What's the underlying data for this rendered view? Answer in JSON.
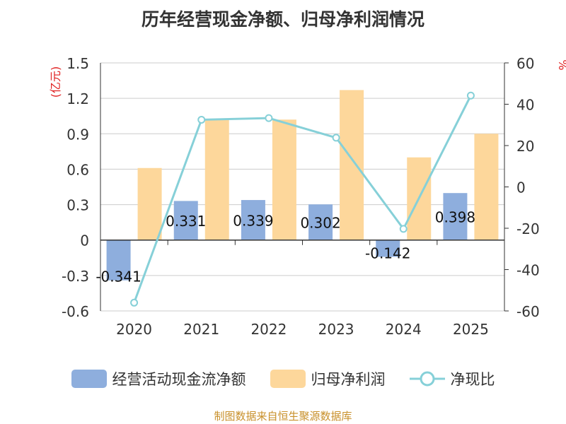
{
  "chart_data": {
    "type": "bar+line",
    "title": "历年经营现金净额、归母净利润情况",
    "categories": [
      "2020",
      "2021",
      "2022",
      "2023",
      "2024",
      "2025"
    ],
    "series": [
      {
        "name": "经营活动现金流净额",
        "type": "bar",
        "axis": "left",
        "color": "#8eaedd",
        "values": [
          -0.341,
          0.331,
          0.339,
          0.302,
          -0.142,
          0.398
        ],
        "labels": [
          "-0.341",
          "0.331",
          "0.339",
          "0.302",
          "-0.142",
          "0.398"
        ]
      },
      {
        "name": "归母净利润",
        "type": "bar",
        "axis": "left",
        "color": "#fdd79b",
        "values": [
          0.61,
          1.02,
          1.02,
          1.27,
          0.7,
          0.9
        ]
      },
      {
        "name": "净现比",
        "type": "line",
        "axis": "right",
        "color": "#86d0d8",
        "values": [
          -56,
          32.5,
          33.3,
          23.8,
          -20.3,
          44.2
        ]
      }
    ],
    "y_left": {
      "label": "(亿元)",
      "min": -0.6,
      "max": 1.5,
      "ticks": [
        1.5,
        1.2,
        0.9,
        0.6,
        0.3,
        0,
        -0.3,
        -0.6
      ],
      "tick_labels": [
        "1.5",
        "1.2",
        "0.9",
        "0.6",
        "0.3",
        "0",
        "-0.3",
        "-0.6"
      ]
    },
    "y_right": {
      "label": "%",
      "min": -60,
      "max": 60,
      "ticks": [
        60,
        40,
        20,
        0,
        -20,
        -40,
        -60
      ],
      "tick_labels": [
        "60",
        "40",
        "20",
        "0",
        "-20",
        "-40",
        "-60"
      ]
    },
    "grid": true,
    "legend_position": "bottom"
  },
  "legend": {
    "items": [
      {
        "label": "经营活动现金流净额",
        "color": "#8eaedd"
      },
      {
        "label": "归母净利润",
        "color": "#fdd79b"
      },
      {
        "label": "净现比",
        "color": "#86d0d8"
      }
    ]
  },
  "source": "制图数据来自恒生聚源数据库"
}
